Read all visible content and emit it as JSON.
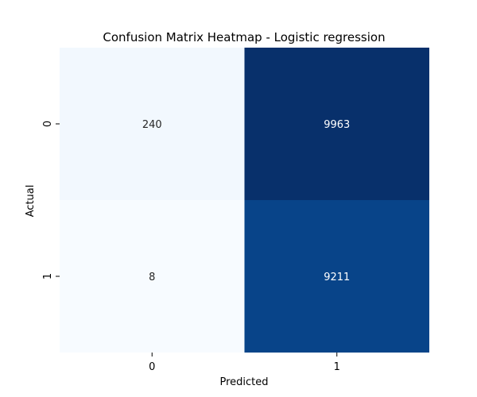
{
  "chart_data": {
    "type": "heatmap",
    "title": "Confusion Matrix Heatmap - Logistic regression",
    "xlabel": "Predicted",
    "ylabel": "Actual",
    "x_categories": [
      "0",
      "1"
    ],
    "y_categories": [
      "0",
      "1"
    ],
    "values": [
      [
        240,
        9963
      ],
      [
        8,
        9211
      ]
    ],
    "colormap": "Blues",
    "color_range": [
      8,
      9963
    ],
    "colorbar": false,
    "annotations": true
  }
}
